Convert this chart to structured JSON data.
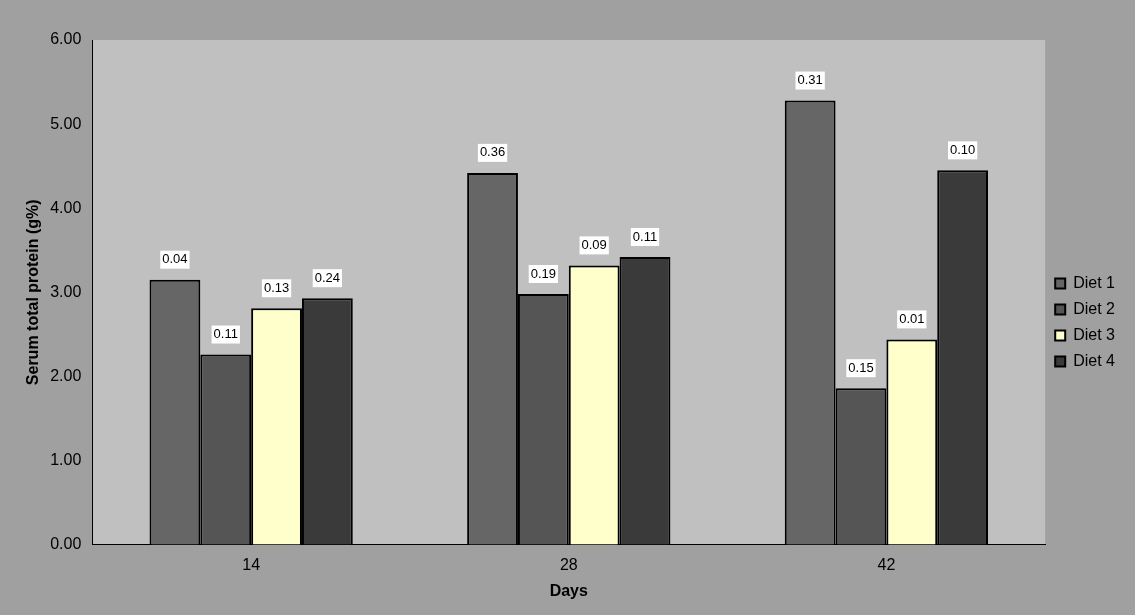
{
  "chart_data": {
    "type": "bar",
    "xlabel": "Days",
    "ylabel": "Serum total protein (g%)",
    "categories": [
      "14",
      "28",
      "42"
    ],
    "series": [
      {
        "name": "Diet 1",
        "color": "#666666",
        "values": [
          3.15,
          4.42,
          5.28
        ]
      },
      {
        "name": "Diet 2",
        "color": "#555555",
        "values": [
          2.26,
          2.98,
          1.86
        ]
      },
      {
        "name": "Diet 3",
        "color": "#ffffcc",
        "values": [
          2.81,
          3.32,
          2.44
        ]
      },
      {
        "name": "Diet 4",
        "color": "#3a3a3a",
        "values": [
          2.93,
          3.42,
          4.45
        ]
      }
    ],
    "annotations": [
      "0.04",
      "0.11",
      "0.13",
      "0.24",
      "0.36",
      "0.19",
      "0.09",
      "0.11",
      "0.31",
      "0.15",
      "0.01",
      "0.10"
    ],
    "ylim": [
      0,
      6
    ],
    "yticks": [
      {
        "value": 0,
        "label": "0.00"
      },
      {
        "value": 1,
        "label": "1.00"
      },
      {
        "value": 2,
        "label": "2.00"
      },
      {
        "value": 3,
        "label": "3.00"
      },
      {
        "value": 4,
        "label": "4.00"
      },
      {
        "value": 5,
        "label": "5.00"
      },
      {
        "value": 6,
        "label": "6.00"
      }
    ],
    "grid": false,
    "legend": "right"
  }
}
